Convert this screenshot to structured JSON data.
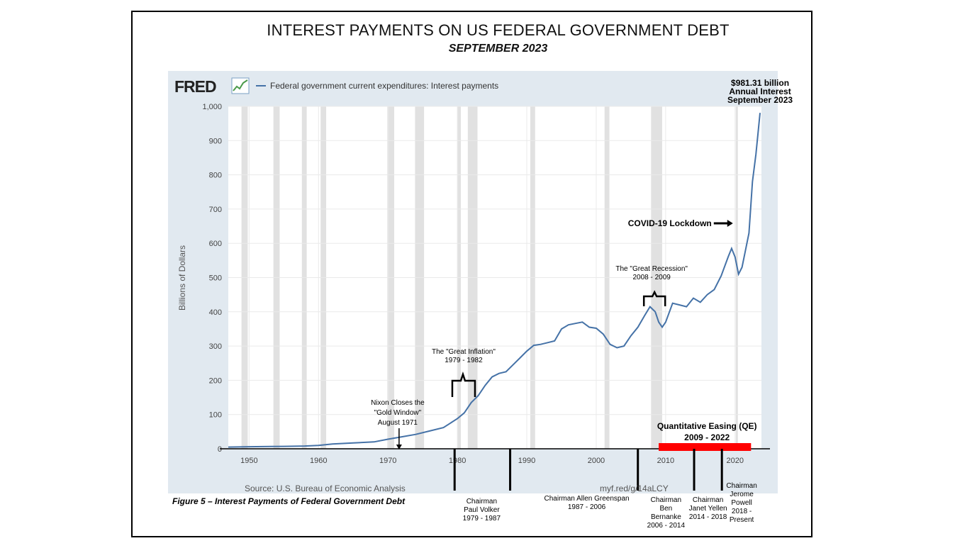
{
  "header": {
    "title": "INTEREST PAYMENTS ON US FEDERAL GOVERNMENT DEBT",
    "subtitle": "SEPTEMBER 2023"
  },
  "fred": {
    "logo": "FRED",
    "legend_label": "Federal government current expenditures: Interest payments",
    "source": "Source: U.S. Bureau of Economic Analysis",
    "link": "myf.red/g/14aLCY"
  },
  "figure_caption": "Figure 5 – Interest Payments of Federal Government Debt",
  "colors": {
    "line": "#4572a7",
    "recession": "#e1e1e1",
    "plot_bg": "#ffffff",
    "panel_bg": "#e1e9f0",
    "qe": "#ff0000"
  },
  "chart_data": {
    "type": "line",
    "title": "Federal government current expenditures: Interest payments",
    "xlabel": "",
    "ylabel": "Billions of Dollars",
    "xlim": [
      1947,
      2023.8
    ],
    "ylim": [
      0,
      1000
    ],
    "x_ticks": [
      1950,
      1960,
      1970,
      1980,
      1990,
      2000,
      2010,
      2020
    ],
    "y_ticks": [
      0,
      100,
      200,
      300,
      400,
      500,
      600,
      700,
      800,
      900,
      1000
    ],
    "y_tick_labels": [
      "0",
      "100",
      "200",
      "300",
      "400",
      "500",
      "600",
      "700",
      "800",
      "900",
      "1,000"
    ],
    "recessions": [
      [
        1948.9,
        1949.8
      ],
      [
        1953.5,
        1954.4
      ],
      [
        1957.6,
        1958.3
      ],
      [
        1960.3,
        1961.1
      ],
      [
        1969.9,
        1970.9
      ],
      [
        1973.9,
        1975.2
      ],
      [
        1980.0,
        1980.5
      ],
      [
        1981.5,
        1982.9
      ],
      [
        1990.5,
        1991.2
      ],
      [
        2001.2,
        2001.9
      ],
      [
        2007.9,
        2009.5
      ],
      [
        2020.1,
        2020.4
      ]
    ],
    "series": [
      {
        "name": "Federal government current expenditures: Interest payments",
        "x": [
          1947,
          1950,
          1955,
          1958,
          1960,
          1962,
          1965,
          1968,
          1970,
          1972,
          1974,
          1976,
          1978,
          1979,
          1980,
          1981,
          1982,
          1983,
          1984,
          1985,
          1986,
          1987,
          1988,
          1989,
          1990,
          1991,
          1992,
          1993,
          1994,
          1995,
          1996,
          1997,
          1998,
          1999,
          2000,
          2001,
          2002,
          2003,
          2004,
          2005,
          2006,
          2007,
          2007.75,
          2008.5,
          2009,
          2009.5,
          2010,
          2011,
          2012,
          2013,
          2014,
          2015,
          2016,
          2017,
          2018,
          2019,
          2019.5,
          2020,
          2020.5,
          2021,
          2021.5,
          2022,
          2022.5,
          2023,
          2023.3,
          2023.6
        ],
        "values": [
          5,
          6,
          7,
          8,
          10,
          14,
          17,
          20,
          28,
          35,
          42,
          52,
          62,
          75,
          88,
          105,
          135,
          155,
          185,
          210,
          220,
          225,
          245,
          265,
          285,
          302,
          305,
          310,
          315,
          350,
          362,
          366,
          370,
          355,
          352,
          335,
          305,
          295,
          300,
          330,
          355,
          390,
          415,
          400,
          370,
          355,
          370,
          425,
          420,
          415,
          440,
          428,
          450,
          465,
          505,
          560,
          585,
          560,
          510,
          530,
          580,
          630,
          780,
          860,
          920,
          981
        ]
      }
    ],
    "annotations": [
      {
        "lines": [
          "$981.31 billion",
          "Annual Interest",
          "September 2023"
        ],
        "x": 2023.6,
        "y": 981
      },
      {
        "lines": [
          "COVID-19 Lockdown"
        ],
        "x": 2020.1,
        "y": 660
      },
      {
        "lines": [
          "The \"Great Recession\"",
          "2008 - 2009"
        ],
        "x": 2008.5,
        "y": 415
      },
      {
        "lines": [
          "The \"Great Inflation\"",
          "1979 - 1982"
        ],
        "x": 1980.8,
        "y": 160
      },
      {
        "lines": [
          "Nixon Closes the",
          "\"Gold Window\"",
          "August 1971"
        ],
        "x": 1971.6,
        "y": 0
      },
      {
        "lines": [
          "Quantitative Easing (QE)",
          "2009 - 2022"
        ],
        "x1": 2009.0,
        "x2": 2022.3
      }
    ],
    "chairmen": [
      {
        "lines": [
          "Chairman",
          "Paul Volker",
          "1979 - 1987"
        ],
        "start": 1979.6,
        "end": 1987.6
      },
      {
        "lines": [
          "Chairman Allen Greenspan",
          "1987 - 2006"
        ],
        "start": 1987.6,
        "end": 2006.0
      },
      {
        "lines": [
          "Chairman",
          "Ben",
          "Bernanke",
          "2006 - 2014"
        ],
        "start": 2006.0,
        "end": 2014.1
      },
      {
        "lines": [
          "Chairman",
          "Janet Yellen",
          "2014 - 2018"
        ],
        "start": 2014.1,
        "end": 2018.1
      },
      {
        "lines": [
          "Chairman",
          "Jerome",
          "Powell",
          "2018 -",
          "Present"
        ],
        "start": 2018.1,
        "end": 2023.8
      }
    ]
  }
}
